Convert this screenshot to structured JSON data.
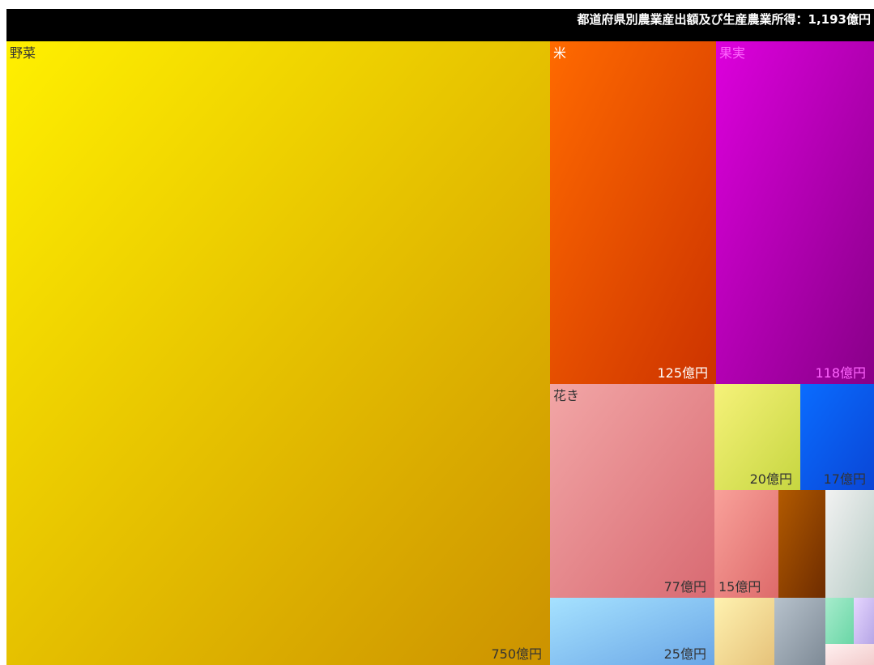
{
  "header": {
    "title": "都道府県別農業産出額及び生産農業所得：1,193億円"
  },
  "chart_data": {
    "type": "treemap",
    "title": "都道府県別農業産出額及び生産農業所得：1,193億円",
    "unit": "億円",
    "items": [
      {
        "name": "野菜",
        "value": 750,
        "value_label": "750億円",
        "color_start": "#fff000",
        "color_end": "#cc9200",
        "text_color": "#333333"
      },
      {
        "name": "米",
        "value": 125,
        "value_label": "125億円",
        "color_start": "#ff6a00",
        "color_end": "#cc3300",
        "text_color": "#ffffff"
      },
      {
        "name": "果実",
        "value": 118,
        "value_label": "118億円",
        "color_start": "#dd00dd",
        "color_end": "#880088",
        "text_color": "#ff66ff"
      },
      {
        "name": "花き",
        "value": 77,
        "value_label": "77億円",
        "color_start": "#f2a6a6",
        "color_end": "#d86a72",
        "text_color": "#333333"
      },
      {
        "name": "",
        "value": 25,
        "value_label": "25億円",
        "color_start": "#a6e2ff",
        "color_end": "#6aa6e6",
        "text_color": "#333333"
      },
      {
        "name": "",
        "value": 20,
        "value_label": "20億円",
        "color_start": "#f6f27a",
        "color_end": "#c6d640",
        "text_color": "#333333"
      },
      {
        "name": "",
        "value": 17,
        "value_label": "17億円",
        "color_start": "#0a6cff",
        "color_end": "#0a46d6",
        "text_color": "#333333"
      },
      {
        "name": "",
        "value": 15,
        "value_label": "15億円",
        "color_start": "#f9a19a",
        "color_end": "#dd6a6a",
        "text_color": "#333333"
      },
      {
        "name": "",
        "value": 12,
        "value_label": "",
        "color_start": "#b25a00",
        "color_end": "#6e2c00",
        "text_color": "#333333"
      },
      {
        "name": "",
        "value": 11,
        "value_label": "",
        "color_start": "#f2f2f2",
        "color_end": "#b8ccc6",
        "text_color": "#333333"
      },
      {
        "name": "",
        "value": 8,
        "value_label": "",
        "color_start": "#fff2b0",
        "color_end": "#e6c27a",
        "text_color": "#333333"
      },
      {
        "name": "",
        "value": 7,
        "value_label": "",
        "color_start": "#b7c2cc",
        "color_end": "#7e8a96",
        "text_color": "#333333"
      },
      {
        "name": "",
        "value": 2.5,
        "value_label": "",
        "color_start": "#a6eccc",
        "color_end": "#6ad6a6",
        "text_color": "#333333"
      },
      {
        "name": "",
        "value": 1.2,
        "value_label": "",
        "color_start": "#e6d6ff",
        "color_end": "#b6a6e6",
        "text_color": "#333333"
      },
      {
        "name": "",
        "value": 1.3,
        "value_label": "",
        "color_start": "#fff0f0",
        "color_end": "#f2cccc",
        "text_color": "#333333"
      }
    ]
  }
}
